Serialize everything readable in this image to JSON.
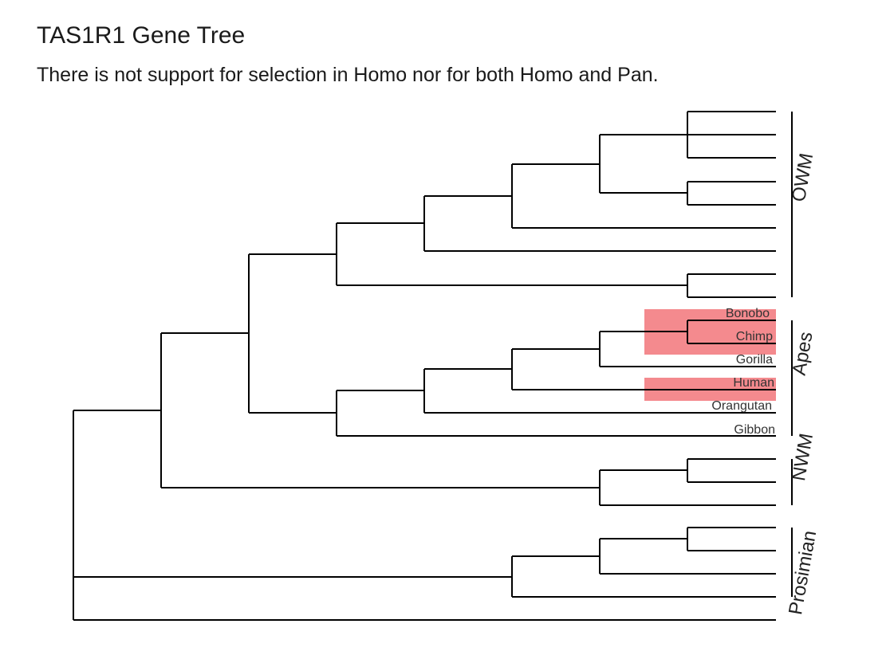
{
  "title": "TAS1R1 Gene Tree",
  "subtitle": "There is not support for selection in Homo nor for both Homo and Pan.",
  "highlight_color": "#f48a8e",
  "tip_labels": {
    "bonobo": "Bonobo",
    "chimp": "Chimp",
    "gorilla": "Gorilla",
    "human": "Human",
    "orangutan": "Orangutan",
    "gibbon": "Gibbon"
  },
  "clade_labels": {
    "owm": "OWM",
    "apes": "Apes",
    "nwm": "NWM",
    "prosimian": "Prosimian"
  },
  "highlighted_taxa": [
    "Bonobo",
    "Chimp",
    "Human"
  ]
}
